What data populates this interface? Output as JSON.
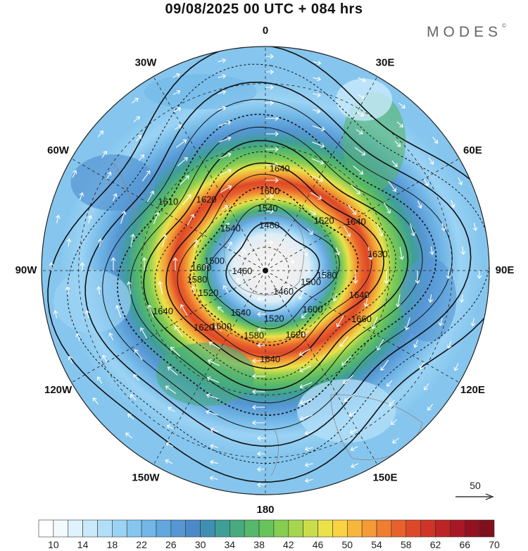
{
  "header": {
    "title": "09/08/2025  00 UTC  + 084 hrs",
    "brand": "MODES",
    "brand_mark": "©"
  },
  "map": {
    "projection": "polar-stereographic-south",
    "longitude_labels": [
      {
        "lon": 0,
        "text": "0"
      },
      {
        "lon": 30,
        "text": "30E"
      },
      {
        "lon": 60,
        "text": "60E"
      },
      {
        "lon": 90,
        "text": "90E"
      },
      {
        "lon": 120,
        "text": "120E"
      },
      {
        "lon": 150,
        "text": "150E"
      },
      {
        "lon": 180,
        "text": "180"
      },
      {
        "lon": -150,
        "text": "150W"
      },
      {
        "lon": -120,
        "text": "120W"
      },
      {
        "lon": -90,
        "text": "90W"
      },
      {
        "lon": -60,
        "text": "60W"
      },
      {
        "lon": -30,
        "text": "30W"
      }
    ],
    "contour_labels": [
      {
        "value": "1640",
        "lon": 8,
        "lat": -48
      },
      {
        "value": "1600",
        "lon": 3,
        "lat": -57
      },
      {
        "value": "1540",
        "lon": 2,
        "lat": -64
      },
      {
        "value": "1480",
        "lon": 5,
        "lat": -71
      },
      {
        "value": "1620",
        "lon": -40,
        "lat": -52
      },
      {
        "value": "1610",
        "lon": -55,
        "lat": -42
      },
      {
        "value": "1540",
        "lon": -40,
        "lat": -67
      },
      {
        "value": "1520",
        "lon": 50,
        "lat": -58
      },
      {
        "value": "1640",
        "lon": 62,
        "lat": -48
      },
      {
        "value": "1500",
        "lon": -80,
        "lat": -68
      },
      {
        "value": "1460",
        "lon": -93,
        "lat": -80
      },
      {
        "value": "1600",
        "lon": -88,
        "lat": -63
      },
      {
        "value": "1580",
        "lon": -98,
        "lat": -61
      },
      {
        "value": "1520",
        "lon": -112,
        "lat": -64
      },
      {
        "value": "1500",
        "lon": 105,
        "lat": -70
      },
      {
        "value": "1580",
        "lon": 95,
        "lat": -64
      },
      {
        "value": "1630",
        "lon": 82,
        "lat": -44
      },
      {
        "value": "1640",
        "lon": 105,
        "lat": -50
      },
      {
        "value": "1460",
        "lon": 140,
        "lat": -78
      },
      {
        "value": "1640",
        "lon": -112,
        "lat": -45
      },
      {
        "value": "1620",
        "lon": -133,
        "lat": -55
      },
      {
        "value": "1540",
        "lon": -150,
        "lat": -69
      },
      {
        "value": "1520",
        "lon": 170,
        "lat": -69
      },
      {
        "value": "1600",
        "lon": 130,
        "lat": -64
      },
      {
        "value": "1660",
        "lon": 117,
        "lat": -46
      },
      {
        "value": "1580",
        "lon": -170,
        "lat": -62
      },
      {
        "value": "1600",
        "lon": -142,
        "lat": -60
      },
      {
        "value": "1620",
        "lon": 155,
        "lat": -60
      },
      {
        "value": "1640",
        "lon": 177,
        "lat": -53
      }
    ],
    "vector_reference": {
      "value": "50"
    }
  },
  "colorbar": {
    "colors": [
      "#ffffff",
      "#f2fafe",
      "#def3fd",
      "#c9eafb",
      "#b2dff8",
      "#9bd3f4",
      "#86c6ee",
      "#72b7e7",
      "#62a7de",
      "#5596d3",
      "#4b89c9",
      "#3f8fb5",
      "#3f9e98",
      "#47ab7f",
      "#55b86a",
      "#69c35b",
      "#86cd52",
      "#a6d64d",
      "#c9dd4b",
      "#ebe24a",
      "#f8d342",
      "#f7b73b",
      "#f49b35",
      "#ef7e30",
      "#e8612c",
      "#dd4828",
      "#cf3426",
      "#bd2425",
      "#a81824",
      "#941121",
      "#80101c"
    ],
    "tick_labels": [
      "10",
      "14",
      "18",
      "22",
      "26",
      "30",
      "34",
      "38",
      "42",
      "46",
      "50",
      "54",
      "58",
      "62",
      "66",
      "70"
    ]
  }
}
